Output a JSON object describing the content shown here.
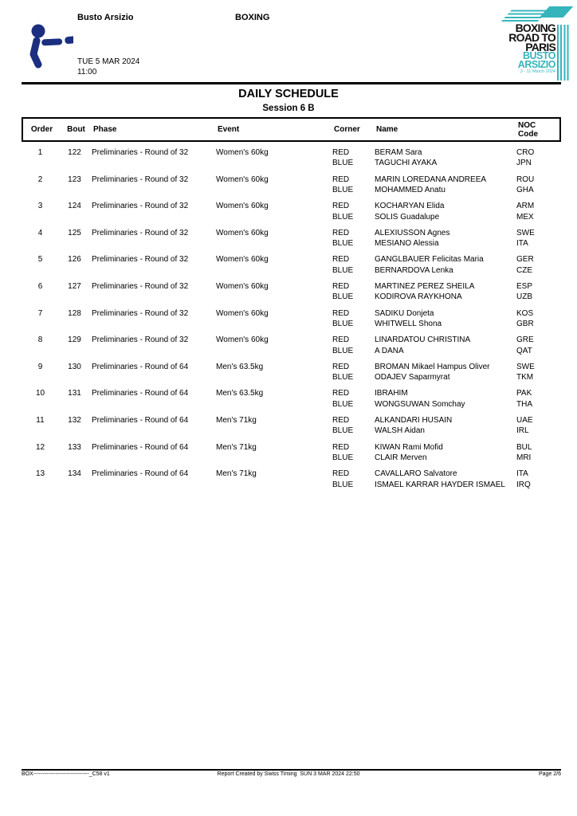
{
  "colors": {
    "teal": "#35b5bb",
    "navy": "#1b2e7f"
  },
  "header": {
    "venue": "Busto Arsizio",
    "sport": "BOXING",
    "date": "TUE 5 MAR 2024",
    "time": "11:00",
    "logo": {
      "line1": "BOXING",
      "line2": "ROAD TO",
      "line3": "PARIS",
      "line4": "BUSTO",
      "line5": "ARSIZIO",
      "line6": "3 - 11 March 2024"
    }
  },
  "title": "DAILY SCHEDULE",
  "subtitle": "Session 6 B",
  "table": {
    "headers": {
      "order": "Order",
      "bout": "Bout",
      "phase": "Phase",
      "event": "Event",
      "corner": "Corner",
      "name": "Name",
      "noc_line1": "NOC",
      "noc_line2": "Code"
    },
    "corner_labels": {
      "red": "RED",
      "blue": "BLUE"
    },
    "rows": [
      {
        "order": "1",
        "bout": "122",
        "phase": "Preliminaries - Round of 32",
        "event": "Women's 60kg",
        "red_name": "BERAM Sara",
        "red_noc": "CRO",
        "blue_name": "TAGUCHI AYAKA",
        "blue_noc": "JPN"
      },
      {
        "order": "2",
        "bout": "123",
        "phase": "Preliminaries - Round of 32",
        "event": "Women's 60kg",
        "red_name": "MARIN LOREDANA ANDREEA",
        "red_noc": "ROU",
        "blue_name": "MOHAMMED Anatu",
        "blue_noc": "GHA"
      },
      {
        "order": "3",
        "bout": "124",
        "phase": "Preliminaries - Round of 32",
        "event": "Women's 60kg",
        "red_name": "KOCHARYAN Elida",
        "red_noc": "ARM",
        "blue_name": "SOLIS Guadalupe",
        "blue_noc": "MEX"
      },
      {
        "order": "4",
        "bout": "125",
        "phase": "Preliminaries - Round of 32",
        "event": "Women's 60kg",
        "red_name": "ALEXIUSSON Agnes",
        "red_noc": "SWE",
        "blue_name": "MESIANO Alessia",
        "blue_noc": "ITA"
      },
      {
        "order": "5",
        "bout": "126",
        "phase": "Preliminaries - Round of 32",
        "event": "Women's 60kg",
        "red_name": "GANGLBAUER Felicitas Maria",
        "red_noc": "GER",
        "blue_name": "BERNARDOVA Lenka",
        "blue_noc": "CZE"
      },
      {
        "order": "6",
        "bout": "127",
        "phase": "Preliminaries - Round of 32",
        "event": "Women's 60kg",
        "red_name": "MARTINEZ PEREZ SHEILA",
        "red_noc": "ESP",
        "blue_name": "KODIROVA RAYKHONA",
        "blue_noc": "UZB"
      },
      {
        "order": "7",
        "bout": "128",
        "phase": "Preliminaries - Round of 32",
        "event": "Women's 60kg",
        "red_name": "SADIKU Donjeta",
        "red_noc": "KOS",
        "blue_name": "WHITWELL Shona",
        "blue_noc": "GBR"
      },
      {
        "order": "8",
        "bout": "129",
        "phase": "Preliminaries - Round of 32",
        "event": "Women's 60kg",
        "red_name": "LINARDATOU CHRISTINA",
        "red_noc": "GRE",
        "blue_name": "A DANA",
        "blue_noc": "QAT"
      },
      {
        "order": "9",
        "bout": "130",
        "phase": "Preliminaries - Round of 64",
        "event": "Men's 63.5kg",
        "red_name": "BROMAN Mikael Hampus Oliver",
        "red_noc": "SWE",
        "blue_name": "ODAJEV Saparmyrat",
        "blue_noc": "TKM"
      },
      {
        "order": "10",
        "bout": "131",
        "phase": "Preliminaries - Round of 64",
        "event": "Men's 63.5kg",
        "red_name": "IBRAHIM",
        "red_noc": "PAK",
        "blue_name": "WONGSUWAN Somchay",
        "blue_noc": "THA"
      },
      {
        "order": "11",
        "bout": "132",
        "phase": "Preliminaries - Round of 64",
        "event": "Men's 71kg",
        "red_name": "ALKANDARI HUSAIN",
        "red_noc": "UAE",
        "blue_name": "WALSH Aidan",
        "blue_noc": "IRL"
      },
      {
        "order": "12",
        "bout": "133",
        "phase": "Preliminaries - Round of 64",
        "event": "Men's 71kg",
        "red_name": "KIWAN Rami Mofid",
        "red_noc": "BUL",
        "blue_name": "CLAIR Merven",
        "blue_noc": "MRI"
      },
      {
        "order": "13",
        "bout": "134",
        "phase": "Preliminaries - Round of 64",
        "event": "Men's 71kg",
        "red_name": "CAVALLARO Salvatore",
        "red_noc": "ITA",
        "blue_name": "ISMAEL KARRAR HAYDER ISMAEL",
        "blue_noc": "IRQ"
      }
    ]
  },
  "footer": {
    "left": "BOX------------------------------_C58 v1",
    "center": "Report Created by Swiss Timing  SUN 3 MAR 2024 22:50",
    "right": "Page 2/6"
  }
}
